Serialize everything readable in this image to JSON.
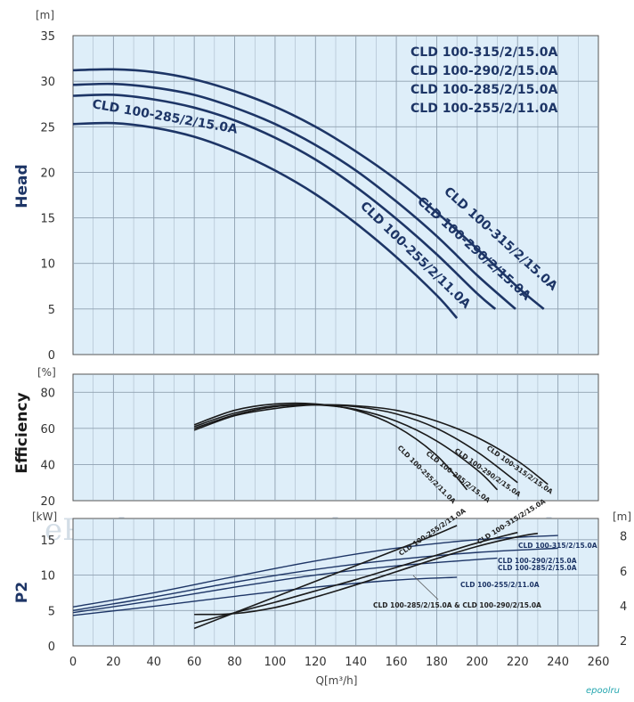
{
  "colors": {
    "curve": "#1d3566",
    "black": "#1a1a1a",
    "plot_bg": "#deeef9",
    "grid": "#8fa0b0",
    "text": "#333333",
    "title": "#1d3566"
  },
  "chart_data": [
    {
      "type": "line",
      "ylabel": "Head",
      "yunit": "[m]",
      "ylim": [
        0,
        35
      ],
      "yticks": [
        "0",
        "5",
        "10",
        "15",
        "20",
        "25",
        "30",
        "35"
      ],
      "xlim": [
        0,
        260
      ],
      "grid": true,
      "legend_position": "top-right",
      "legend": [
        "CLD 100-315/2/15.0A",
        "CLD 100-290/2/15.0A",
        "CLD 100-285/2/15.0A",
        "CLD 100-255/2/11.0A"
      ],
      "series": [
        {
          "name": "CLD 100-315/2/15.0A",
          "x": [
            0,
            20,
            40,
            60,
            80,
            100,
            120,
            140,
            160,
            180,
            200,
            220,
            233
          ],
          "y": [
            31.2,
            31.3,
            31.0,
            30.2,
            28.9,
            27.2,
            25.0,
            22.3,
            19.2,
            15.6,
            11.6,
            7.4,
            5.0
          ],
          "label": "CLD 100-315/2/15.0A"
        },
        {
          "name": "CLD 100-290/2/15.0A",
          "x": [
            0,
            20,
            40,
            60,
            80,
            100,
            120,
            140,
            160,
            180,
            200,
            219
          ],
          "y": [
            29.6,
            29.7,
            29.3,
            28.5,
            27.1,
            25.3,
            23.0,
            20.2,
            16.8,
            13.0,
            8.7,
            5.0
          ],
          "label": "CLD 100-290/2/15.0A"
        },
        {
          "name": "CLD 100-285/2/15.0A",
          "x": [
            0,
            20,
            40,
            60,
            80,
            100,
            120,
            140,
            160,
            180,
            200,
            209
          ],
          "y": [
            28.4,
            28.5,
            28.0,
            27.1,
            25.7,
            23.8,
            21.4,
            18.4,
            14.9,
            11.0,
            6.7,
            5.0
          ],
          "label": "CLD 100-285/2/15.0A"
        },
        {
          "name": "CLD 100-255/2/11.0A",
          "x": [
            0,
            20,
            40,
            60,
            80,
            100,
            120,
            140,
            160,
            180,
            190
          ],
          "y": [
            25.3,
            25.4,
            24.9,
            23.9,
            22.3,
            20.2,
            17.6,
            14.4,
            10.7,
            6.5,
            4.0
          ],
          "label": "CLD 100-255/2/11.0A"
        }
      ]
    },
    {
      "type": "line",
      "ylabel": "Efficiency",
      "yunit": "[%]",
      "ylim": [
        20,
        90
      ],
      "yticks": [
        "20",
        "40",
        "60",
        "80"
      ],
      "xlim": [
        0,
        260
      ],
      "grid": true,
      "series": [
        {
          "name": "CLD 100-315/2/15.0A",
          "x": [
            60,
            80,
            100,
            120,
            140,
            160,
            180,
            200,
            220,
            235
          ],
          "y": [
            59,
            67,
            71,
            73,
            72.5,
            70,
            64,
            55,
            42,
            29
          ],
          "label": "CLD 100-315/2/15.0A"
        },
        {
          "name": "CLD 100-290/2/15.0A",
          "x": [
            60,
            80,
            100,
            120,
            140,
            160,
            180,
            200,
            220
          ],
          "y": [
            60,
            67.5,
            72,
            73,
            72,
            68,
            60,
            47,
            30
          ],
          "label": "CLD 100-290/2/15.0A"
        },
        {
          "name": "CLD 100-285/2/15.0A",
          "x": [
            60,
            80,
            100,
            120,
            140,
            160,
            180,
            200,
            210
          ],
          "y": [
            61,
            68.5,
            72.5,
            73,
            70.5,
            64,
            53,
            37,
            26
          ],
          "label": "CLD 100-285/2/15.0A"
        },
        {
          "name": "CLD 100-255/2/11.0A",
          "x": [
            60,
            80,
            100,
            120,
            140,
            160,
            180,
            195
          ],
          "y": [
            62,
            70,
            73.5,
            73.5,
            70,
            61,
            45,
            26
          ],
          "label": "CLD 100-255/2/11.0A"
        }
      ]
    },
    {
      "type": "line",
      "ylabel": "P2",
      "yunit": "[kW]",
      "y2unit": "[m]",
      "ylim": [
        0,
        18
      ],
      "yticks": [
        "0",
        "5",
        "10",
        "15"
      ],
      "y2ticks": [
        "2",
        "4",
        "6",
        "8"
      ],
      "xlabel": "Q[m³/h]",
      "xlim": [
        0,
        260
      ],
      "xticks": [
        "0",
        "20",
        "40",
        "60",
        "80",
        "100",
        "120",
        "140",
        "160",
        "180",
        "200",
        "220",
        "240",
        "260"
      ],
      "grid": true,
      "series": [
        {
          "name": "CLD 100-315/2/15.0A",
          "x": [
            0,
            40,
            80,
            120,
            160,
            200,
            240
          ],
          "y": [
            5.5,
            7.5,
            9.8,
            12.0,
            13.8,
            15.0,
            15.6
          ],
          "label": "CLD 100-315/2/15.0A"
        },
        {
          "name": "CLD 100-290/2/15.0A",
          "x": [
            0,
            40,
            80,
            120,
            160,
            200,
            240
          ],
          "y": [
            5.0,
            6.9,
            9.0,
            10.8,
            12.2,
            13.2,
            13.8
          ],
          "label": "CLD 100-290/2/15.0A"
        },
        {
          "name": "CLD 100-285/2/15.0A",
          "x": [
            0,
            40,
            80,
            120,
            160,
            200,
            210
          ],
          "y": [
            4.7,
            6.4,
            8.3,
            10.0,
            11.3,
            12.2,
            12.4
          ],
          "label": "CLD 100-285/2/15.0A"
        },
        {
          "name": "CLD 100-255/2/11.0A",
          "x": [
            0,
            40,
            80,
            120,
            160,
            190
          ],
          "y": [
            4.3,
            5.6,
            7.0,
            8.3,
            9.3,
            9.7
          ],
          "label": "CLD 100-255/2/11.0A"
        },
        {
          "name": "CLD 100-315/2/15.0A",
          "axis": "right",
          "x": [
            60,
            80,
            100,
            120,
            140,
            160,
            180,
            200,
            220,
            230
          ],
          "y": [
            3.5,
            3.55,
            3.9,
            4.5,
            5.2,
            5.95,
            6.7,
            7.4,
            7.95,
            8.15
          ],
          "label": "CLD 100-315/2/15.0A"
        },
        {
          "name": "CLD 100-285/2/15.0A & CLD 100-290/2/15.0A",
          "axis": "right",
          "x": [
            60,
            80,
            100,
            120,
            140,
            160,
            180,
            200,
            220
          ],
          "y": [
            3.0,
            3.6,
            4.2,
            4.85,
            5.5,
            6.2,
            6.9,
            7.6,
            8.2
          ],
          "label": "CLD 100-285/2/15.0A & CLD 100-290/2/15.0A"
        },
        {
          "name": "CLD 100-255/2/11.0A",
          "axis": "right",
          "x": [
            60,
            80,
            100,
            120,
            140,
            160,
            180,
            190
          ],
          "y": [
            2.7,
            3.6,
            4.5,
            5.4,
            6.3,
            7.2,
            8.1,
            8.6
          ],
          "label": "CLD 100-255/2/11.0A"
        }
      ]
    }
  ],
  "watermarks": [
    "ePool.ru",
    "ePool.ru",
    "ePool.ru"
  ],
  "logo": "epoolru"
}
